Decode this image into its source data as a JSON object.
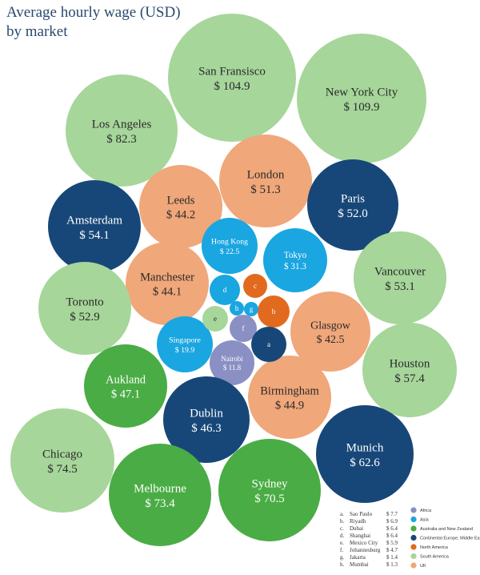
{
  "chart_data": {
    "type": "bubble",
    "title": "Average hourly wage (USD)",
    "subtitle": "by market",
    "colors": {
      "Africa": "#8a8fc4",
      "Asia": "#1aa6e0",
      "Australia and New Zealand": "#4aac45",
      "Continental Europe, Middle East": "#174778",
      "North America": "#e26a1e",
      "South America": "#a6d69a",
      "UK": "#f0a77a"
    },
    "bubbles": [
      {
        "name": "San Fransisco",
        "label": "$ 104.9",
        "value": 104.9,
        "group": "South America"
      },
      {
        "name": "New York City",
        "label": "$ 109.9",
        "value": 109.9,
        "group": "South America"
      },
      {
        "name": "Los Angeles",
        "label": "$ 82.3",
        "value": 82.3,
        "group": "South America"
      },
      {
        "name": "London",
        "label": "$ 51.3",
        "value": 51.3,
        "group": "UK"
      },
      {
        "name": "Leeds",
        "label": "$ 44.2",
        "value": 44.2,
        "group": "UK"
      },
      {
        "name": "Paris",
        "label": "$ 52.0",
        "value": 52.0,
        "group": "Continental Europe, Middle East"
      },
      {
        "name": "Amsterdam",
        "label": "$ 54.1",
        "value": 54.1,
        "group": "Continental Europe, Middle East"
      },
      {
        "name": "Hong Kong",
        "label": "$ 22.5",
        "value": 22.5,
        "group": "Asia"
      },
      {
        "name": "Tokyo",
        "label": "$ 31.3",
        "value": 31.3,
        "group": "Asia"
      },
      {
        "name": "Vancouver",
        "label": "$ 53.1",
        "value": 53.1,
        "group": "South America"
      },
      {
        "name": "Manchester",
        "label": "$ 44.1",
        "value": 44.1,
        "group": "UK"
      },
      {
        "name": "Toronto",
        "label": "$ 52.9",
        "value": 52.9,
        "group": "South America"
      },
      {
        "name": "Glasgow",
        "label": "$ 42.5",
        "value": 42.5,
        "group": "UK"
      },
      {
        "name": "Singapore",
        "label": "$ 19.9",
        "value": 19.9,
        "group": "Asia"
      },
      {
        "name": "Nairobi",
        "label": "$ 11.8",
        "value": 11.8,
        "group": "Africa"
      },
      {
        "name": "Houston",
        "label": "$ 57.4",
        "value": 57.4,
        "group": "South America"
      },
      {
        "name": "Aukland",
        "label": "$ 47.1",
        "value": 47.1,
        "group": "Australia and New Zealand"
      },
      {
        "name": "Birmingham",
        "label": "$ 44.9",
        "value": 44.9,
        "group": "UK"
      },
      {
        "name": "Dublin",
        "label": "$ 46.3",
        "value": 46.3,
        "group": "Continental Europe, Middle East"
      },
      {
        "name": "Chicago",
        "label": "$ 74.5",
        "value": 74.5,
        "group": "South America"
      },
      {
        "name": "Munich",
        "label": "$ 62.6",
        "value": 62.6,
        "group": "Continental Europe, Middle East"
      },
      {
        "name": "Melbourne",
        "label": "$ 73.4",
        "value": 73.4,
        "group": "Australia and New Zealand"
      },
      {
        "name": "Sydney",
        "label": "$ 70.5",
        "value": 70.5,
        "group": "Australia and New Zealand"
      },
      {
        "name": "c",
        "label": "",
        "value": 6.4,
        "group": "North America"
      },
      {
        "name": "d",
        "label": "",
        "value": 6.4,
        "group": "Asia"
      },
      {
        "name": "b",
        "label": "",
        "value": 6.9,
        "group": "North America"
      },
      {
        "name": "h",
        "label": "",
        "value": 1.3,
        "group": "Asia"
      },
      {
        "name": "g",
        "label": "",
        "value": 1.4,
        "group": "Asia"
      },
      {
        "name": "e",
        "label": "",
        "value": 5.9,
        "group": "South America"
      },
      {
        "name": "f",
        "label": "",
        "value": 4.7,
        "group": "Africa"
      },
      {
        "name": "a",
        "label": "",
        "value": 7.7,
        "group": "Continental Europe, Middle East"
      }
    ],
    "small_markets": [
      {
        "key": "a.",
        "city": "Sao Paulo",
        "value": "$ 7.7"
      },
      {
        "key": "b.",
        "city": "Riyadh",
        "value": "$ 6.9"
      },
      {
        "key": "c.",
        "city": "Dubai",
        "value": "$ 6.4"
      },
      {
        "key": "d.",
        "city": "Shanghai",
        "value": "$ 6.4"
      },
      {
        "key": "e.",
        "city": "Mexico City",
        "value": "$ 5.9"
      },
      {
        "key": "f.",
        "city": "Johannesburg",
        "value": "$ 4.7"
      },
      {
        "key": "g.",
        "city": "Jakarta",
        "value": "$ 1.4"
      },
      {
        "key": "h.",
        "city": "Mumbai",
        "value": "$ 1.3"
      }
    ],
    "legend": [
      {
        "label": "Africa",
        "color": "#8a8fc4"
      },
      {
        "label": "Asia",
        "color": "#1aa6e0"
      },
      {
        "label": "Australia and New Zealand",
        "color": "#4aac45"
      },
      {
        "label": "Continental Europe, Middle East",
        "color": "#174778"
      },
      {
        "label": "North America",
        "color": "#e26a1e"
      },
      {
        "label": "South America",
        "color": "#a6d69a"
      },
      {
        "label": "UK",
        "color": "#f0a77a"
      }
    ]
  }
}
